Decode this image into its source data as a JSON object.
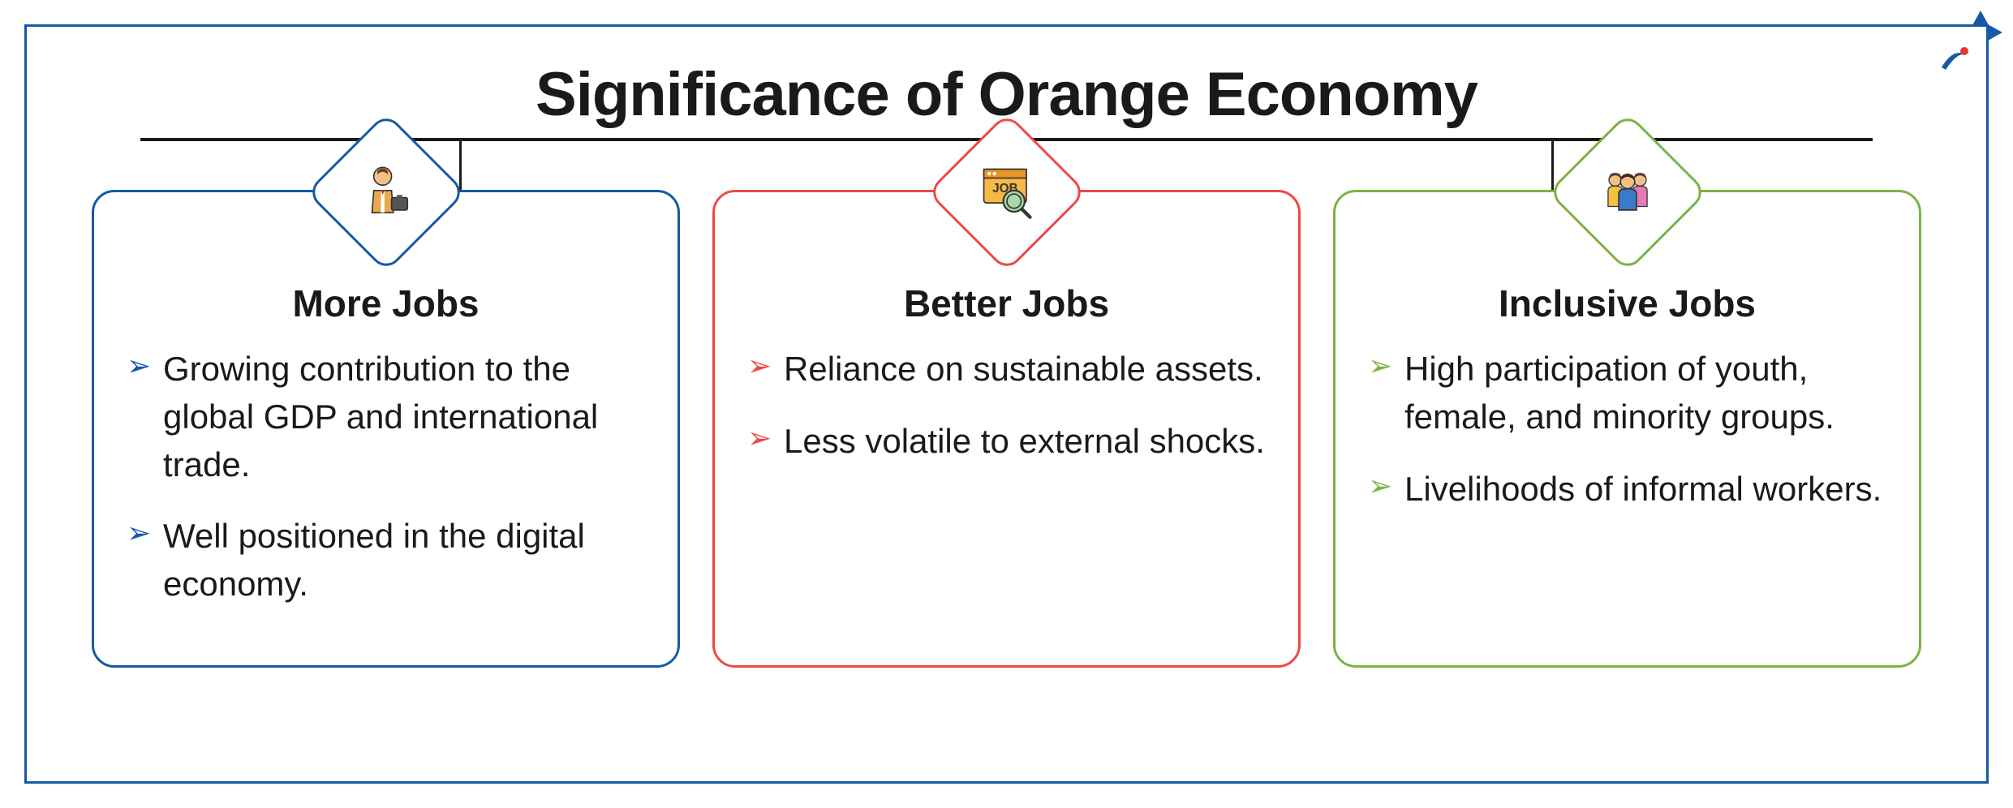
{
  "title": "Significance of Orange Economy",
  "frame_border_color": "#1659a6",
  "background_color": "#ffffff",
  "title_color": "#1a1a1a",
  "title_fontsize": 76,
  "line_color": "#1a1a1a",
  "bullet_color_1": "#1659a6",
  "bullet_color_2": "#ec4949",
  "bullet_color_3": "#7cb342",
  "cards": [
    {
      "border_color": "#1659a6",
      "icon": "businessman",
      "heading": "More Jobs",
      "bullets": [
        "Growing contribution to the global GDP and international trade.",
        "Well positioned in the digital economy."
      ]
    },
    {
      "border_color": "#ec4949",
      "icon": "job-search",
      "heading": "Better Jobs",
      "bullets": [
        "Reliance on sustainable assets.",
        "Less volatile to external shocks."
      ]
    },
    {
      "border_color": "#7cb342",
      "icon": "people-group",
      "heading": "Inclusive Jobs",
      "bullets": [
        "High participation of youth, female, and minority groups.",
        "Livelihoods of informal workers."
      ]
    }
  ],
  "logo": {
    "swoosh_color": "#1659a6",
    "dot_color": "#e53935"
  },
  "connector_positions_percent": [
    18.5,
    50,
    81.5
  ]
}
